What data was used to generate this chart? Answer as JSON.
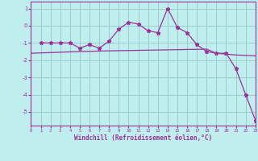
{
  "xlabel": "Windchill (Refroidissement éolien,°C)",
  "xlim": [
    0,
    23
  ],
  "ylim": [
    -5.8,
    1.4
  ],
  "yticks": [
    1,
    0,
    -1,
    -2,
    -3,
    -4,
    -5
  ],
  "xticks": [
    0,
    1,
    2,
    3,
    4,
    5,
    6,
    7,
    8,
    9,
    10,
    11,
    12,
    13,
    14,
    15,
    16,
    17,
    18,
    19,
    20,
    21,
    22,
    23
  ],
  "bg_color": "#c0eeee",
  "line_color": "#993399",
  "grid_color": "#99cccc",
  "line1_x": [
    1,
    2,
    3,
    4,
    5,
    6,
    7,
    8,
    9,
    10,
    11,
    12,
    13,
    14,
    15,
    16,
    17,
    18,
    19,
    20,
    21,
    22,
    23
  ],
  "line1_y": [
    -1.0,
    -1.0,
    -1.0,
    -1.0,
    -1.3,
    -1.1,
    -1.3,
    -0.9,
    -0.2,
    0.2,
    0.1,
    -0.3,
    -0.4,
    1.0,
    -0.1,
    -0.4,
    -1.1,
    -1.5,
    -1.6,
    -1.6,
    -2.5,
    -4.0,
    -5.5
  ],
  "line2_x": [
    0,
    1,
    2,
    3,
    4,
    5,
    6,
    7,
    8,
    9,
    10,
    11,
    12,
    13,
    14,
    15,
    16,
    17,
    18,
    19,
    20,
    21,
    22,
    23
  ],
  "line2_y": [
    -1.6,
    -1.58,
    -1.56,
    -1.54,
    -1.52,
    -1.5,
    -1.49,
    -1.47,
    -1.46,
    -1.45,
    -1.44,
    -1.43,
    -1.42,
    -1.41,
    -1.4,
    -1.39,
    -1.38,
    -1.37,
    -1.36,
    -1.6,
    -1.65,
    -1.7,
    -1.72,
    -1.75
  ]
}
